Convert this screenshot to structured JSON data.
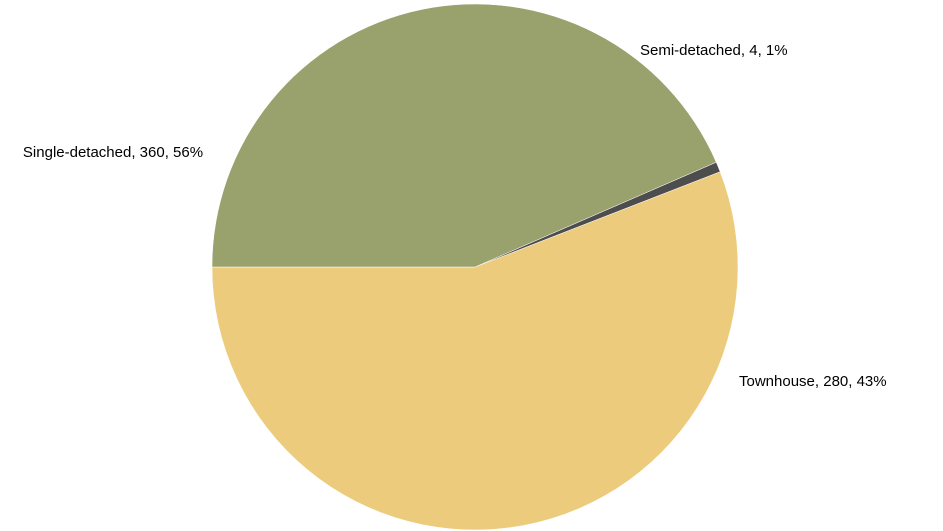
{
  "chart_data": {
    "type": "pie",
    "title": "",
    "start_angle_deg": 180,
    "direction": "counterclockwise",
    "slices": [
      {
        "category": "Single-detached",
        "value": 360,
        "percent": "56%",
        "color": "#ECCC7C",
        "label": "Single-detached, 360, 56%"
      },
      {
        "category": "Semi-detached",
        "value": 4,
        "percent": "1%",
        "color": "#4D4D4D",
        "label": "Semi-detached, 4, 1%"
      },
      {
        "category": "Townhouse",
        "value": 280,
        "percent": "43%",
        "color": "#99A16D",
        "label": "Townhouse, 280, 43%"
      }
    ]
  }
}
